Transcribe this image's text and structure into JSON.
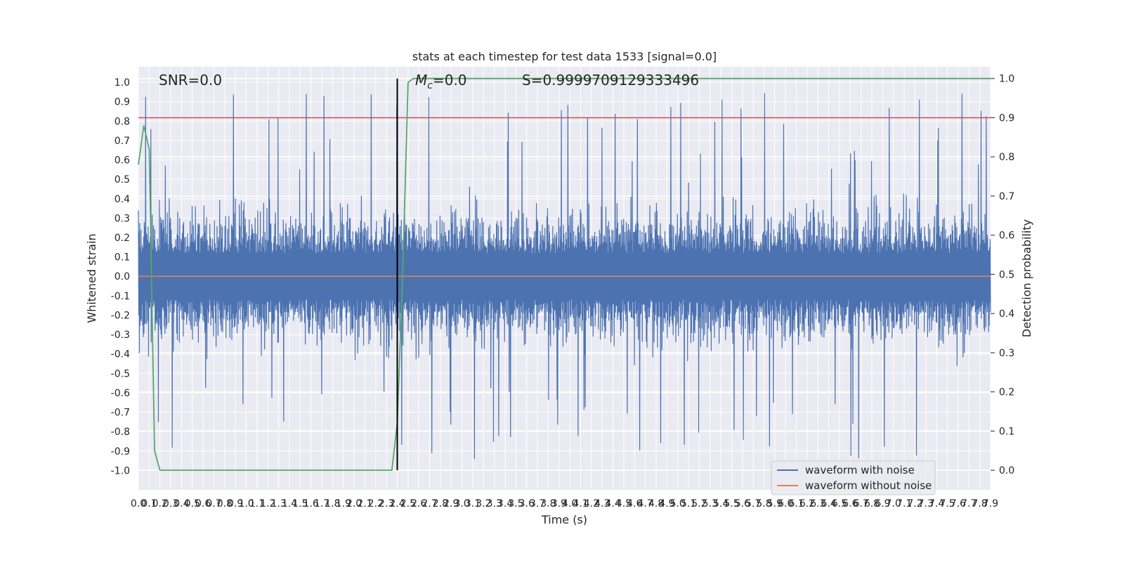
{
  "chart_data": {
    "type": "line",
    "title": "stats at each timestep for test data 1533 [signal=0.0]",
    "xlabel": "Time (s)",
    "ylabel_left": "Whitened strain",
    "ylabel_right": "Detection probability",
    "xlim": [
      0.0,
      7.9
    ],
    "ylim_left": [
      -1.1,
      1.08
    ],
    "ylim_right": [
      -0.05,
      1.03
    ],
    "x_ticks": [
      "0.0",
      "0.1",
      "0.2",
      "0.3",
      "0.4",
      "0.5",
      "0.6",
      "0.7",
      "0.8",
      "0.9",
      "1.0",
      "1.1",
      "1.2",
      "1.3",
      "1.4",
      "1.5",
      "1.6",
      "1.7",
      "1.8",
      "1.9",
      "2.0",
      "2.1",
      "2.2",
      "2.3",
      "2.4",
      "2.5",
      "2.6",
      "2.7",
      "2.8",
      "2.9",
      "3.0",
      "3.1",
      "3.2",
      "3.3",
      "3.4",
      "3.5",
      "3.6",
      "3.7",
      "3.8",
      "3.9",
      "4.0",
      "4.1",
      "4.2",
      "4.3",
      "4.4",
      "4.5",
      "4.6",
      "4.7",
      "4.8",
      "4.9",
      "5.0",
      "5.1",
      "5.2",
      "5.3",
      "5.4",
      "5.5",
      "5.6",
      "5.7",
      "5.8",
      "5.9",
      "6.0",
      "6.1",
      "6.2",
      "6.3",
      "6.4",
      "6.5",
      "6.6",
      "6.7",
      "6.8",
      "6.9",
      "7.0",
      "7.1",
      "7.2",
      "7.3",
      "7.4",
      "7.5",
      "7.6",
      "7.7",
      "7.8",
      "7.9"
    ],
    "y_ticks_left": [
      "1.0",
      "0.9",
      "0.8",
      "0.7",
      "0.6",
      "0.5",
      "0.4",
      "0.3",
      "0.2",
      "0.1",
      "0.0",
      "-0.1",
      "-0.2",
      "-0.3",
      "-0.4",
      "-0.5",
      "-0.6",
      "-0.7",
      "-0.8",
      "-0.9",
      "-1.0"
    ],
    "y_ticks_right": [
      "1.0",
      "0.9",
      "0.8",
      "0.7",
      "0.6",
      "0.5",
      "0.4",
      "0.3",
      "0.2",
      "0.1",
      "0.0"
    ],
    "annotations": {
      "snr": "SNR=0.0",
      "mc": "=0.0",
      "mc_symbol": "M",
      "mc_sub": "c",
      "s": "S=0.9999709129333496"
    },
    "series": [
      {
        "name": "waveform with noise",
        "color": "#4c72b0",
        "kind": "noise",
        "amplitude_typical": 0.38,
        "amplitude_peak": 1.0
      },
      {
        "name": "waveform without noise",
        "color": "#dd8452",
        "y": 0.0
      }
    ],
    "detection_probability": {
      "color": "#55a868",
      "x": [
        0.0,
        0.05,
        0.1,
        0.15,
        0.2,
        0.25,
        0.3,
        2.3,
        2.35,
        2.4,
        2.45,
        2.5,
        2.55,
        7.9
      ],
      "y": [
        0.78,
        0.88,
        0.82,
        0.05,
        0.0,
        0.0,
        0.0,
        0.0,
        0.0,
        0.12,
        0.5,
        0.99,
        1.0,
        1.0
      ]
    },
    "threshold": {
      "color": "#c44e52",
      "value_right": 0.9
    },
    "vline": {
      "color": "#000000",
      "x": 2.4
    },
    "legend_placement": "bottom-right",
    "grid": true,
    "background_color": "#eaeaf2"
  }
}
